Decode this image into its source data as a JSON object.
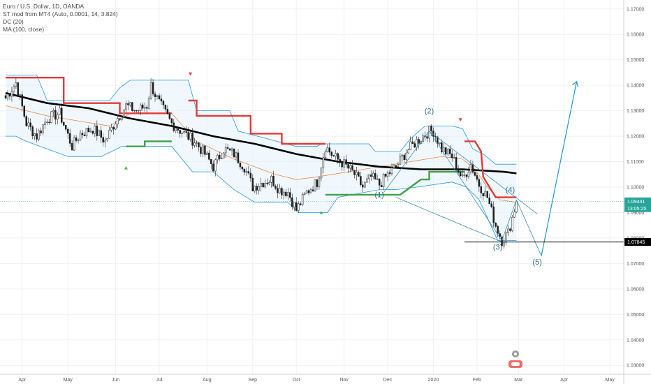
{
  "legend": {
    "title": "Euro / U.S. Dollar, 1D, OANDA",
    "indicator1": "ST mod from MT4 (Auto, 0.0001, 14, 3.824)",
    "indicator2": "DC (20)",
    "indicator3": "MA (100, close)"
  },
  "chart_data": {
    "type": "line",
    "title": "Euro / U.S. Dollar, 1D, OANDA",
    "xlabel": "",
    "ylabel": "",
    "ylim": [
      1.0265,
      1.1735
    ],
    "y_ticks": [
      "1.17000",
      "1.16000",
      "1.15000",
      "1.14000",
      "1.13000",
      "1.12000",
      "1.11000",
      "1.10000",
      "1.09000",
      "1.08000",
      "1.07000",
      "1.06000",
      "1.05000",
      "1.04000",
      "1.03000"
    ],
    "x_ticks": [
      {
        "label": "Apr",
        "index": 8
      },
      {
        "label": "May",
        "index": 30
      },
      {
        "label": "Jun",
        "index": 53
      },
      {
        "label": "Jul",
        "index": 74
      },
      {
        "label": "Aug",
        "index": 97
      },
      {
        "label": "Sep",
        "index": 119
      },
      {
        "label": "Oct",
        "index": 140
      },
      {
        "label": "Nov",
        "index": 163
      },
      {
        "label": "Dec",
        "index": 184
      },
      {
        "label": "2020",
        "index": 206
      },
      {
        "label": "Feb",
        "index": 227
      },
      {
        "label": "Mar",
        "index": 247
      },
      {
        "label": "Apr",
        "index": 269
      },
      {
        "label": "May",
        "index": 291
      }
    ],
    "price_anchors": [
      [
        0,
        1.135
      ],
      [
        5,
        1.141
      ],
      [
        10,
        1.125
      ],
      [
        15,
        1.12
      ],
      [
        20,
        1.127
      ],
      [
        26,
        1.129
      ],
      [
        32,
        1.116
      ],
      [
        36,
        1.121
      ],
      [
        42,
        1.123
      ],
      [
        48,
        1.118
      ],
      [
        53,
        1.126
      ],
      [
        58,
        1.132
      ],
      [
        63,
        1.13
      ],
      [
        68,
        1.132
      ],
      [
        70,
        1.14
      ],
      [
        74,
        1.133
      ],
      [
        80,
        1.125
      ],
      [
        86,
        1.121
      ],
      [
        91,
        1.118
      ],
      [
        96,
        1.113
      ],
      [
        100,
        1.108
      ],
      [
        105,
        1.115
      ],
      [
        110,
        1.113
      ],
      [
        115,
        1.108
      ],
      [
        119,
        1.1
      ],
      [
        124,
        1.102
      ],
      [
        128,
        1.103
      ],
      [
        132,
        1.099
      ],
      [
        136,
        1.098
      ],
      [
        140,
        1.091
      ],
      [
        145,
        1.098
      ],
      [
        150,
        1.102
      ],
      [
        154,
        1.116
      ],
      [
        158,
        1.112
      ],
      [
        163,
        1.109
      ],
      [
        168,
        1.105
      ],
      [
        172,
        1.1
      ],
      [
        176,
        1.104
      ],
      [
        180,
        1.101
      ],
      [
        184,
        1.105
      ],
      [
        188,
        1.108
      ],
      [
        193,
        1.114
      ],
      [
        198,
        1.118
      ],
      [
        204,
        1.122
      ],
      [
        206,
        1.122
      ],
      [
        210,
        1.115
      ],
      [
        215,
        1.112
      ],
      [
        220,
        1.103
      ],
      [
        224,
        1.109
      ],
      [
        228,
        1.101
      ],
      [
        232,
        1.096
      ],
      [
        236,
        1.085
      ],
      [
        239,
        1.079
      ],
      [
        242,
        1.082
      ],
      [
        244,
        1.088
      ],
      [
        246,
        1.0944
      ]
    ],
    "series": [
      {
        "name": "MA (100, close)",
        "color": "#000000",
        "points": [
          [
            0,
            1.137
          ],
          [
            20,
            1.133
          ],
          [
            40,
            1.131
          ],
          [
            60,
            1.127
          ],
          [
            80,
            1.124
          ],
          [
            100,
            1.12
          ],
          [
            120,
            1.117
          ],
          [
            140,
            1.113
          ],
          [
            160,
            1.11
          ],
          [
            180,
            1.108
          ],
          [
            200,
            1.107
          ],
          [
            220,
            1.107
          ],
          [
            240,
            1.106
          ],
          [
            246,
            1.1054
          ]
        ]
      },
      {
        "name": "ST up",
        "color": "#4caf50",
        "segments": [
          [
            [
              58,
              1.116
            ],
            [
              67,
              1.116
            ],
            [
              67,
              1.118
            ],
            [
              74,
              1.118
            ],
            [
              80,
              1.118
            ]
          ],
          [
            [
              154,
              1.097
            ],
            [
              164,
              1.097
            ],
            [
              172,
              1.097
            ],
            [
              186,
              1.097
            ],
            [
              190,
              1.097
            ],
            [
              200,
              1.103
            ],
            [
              204,
              1.103
            ],
            [
              204,
              1.106
            ],
            [
              221,
              1.106
            ]
          ]
        ]
      },
      {
        "name": "ST down",
        "color": "#e53935",
        "segments": [
          [
            [
              0,
              1.143
            ],
            [
              28,
              1.143
            ],
            [
              28,
              1.133
            ],
            [
              55,
              1.133
            ],
            [
              55,
              1.129
            ],
            [
              80,
              1.129
            ]
          ],
          [
            [
              88,
              1.134
            ],
            [
              92,
              1.134
            ],
            [
              92,
              1.128
            ],
            [
              118,
              1.128
            ],
            [
              118,
              1.121
            ],
            [
              133,
              1.121
            ],
            [
              133,
              1.117
            ],
            [
              154,
              1.117
            ]
          ],
          [
            [
              221,
              1.118
            ],
            [
              226,
              1.118
            ],
            [
              229,
              1.114
            ],
            [
              230,
              1.104
            ],
            [
              236,
              1.096
            ],
            [
              246,
              1.096
            ]
          ]
        ]
      },
      {
        "name": "DC upper",
        "color": "#2196f3",
        "points": [
          [
            0,
            1.144
          ],
          [
            15,
            1.144
          ],
          [
            20,
            1.134
          ],
          [
            50,
            1.134
          ],
          [
            55,
            1.139
          ],
          [
            60,
            1.142
          ],
          [
            88,
            1.142
          ],
          [
            92,
            1.13
          ],
          [
            108,
            1.13
          ],
          [
            112,
            1.122
          ],
          [
            140,
            1.116
          ],
          [
            150,
            1.116
          ],
          [
            152,
            1.117
          ],
          [
            175,
            1.117
          ],
          [
            178,
            1.114
          ],
          [
            190,
            1.114
          ],
          [
            195,
            1.119
          ],
          [
            202,
            1.124
          ],
          [
            215,
            1.124
          ],
          [
            220,
            1.123
          ],
          [
            225,
            1.115
          ],
          [
            230,
            1.113
          ],
          [
            236,
            1.109
          ],
          [
            246,
            1.109
          ]
        ]
      },
      {
        "name": "DC lower",
        "color": "#2196f3",
        "points": [
          [
            0,
            1.12
          ],
          [
            5,
            1.12
          ],
          [
            10,
            1.118
          ],
          [
            30,
            1.112
          ],
          [
            46,
            1.112
          ],
          [
            56,
            1.116
          ],
          [
            64,
            1.116
          ],
          [
            80,
            1.116
          ],
          [
            90,
            1.106
          ],
          [
            100,
            1.106
          ],
          [
            110,
            1.099
          ],
          [
            120,
            1.094
          ],
          [
            128,
            1.094
          ],
          [
            136,
            1.094
          ],
          [
            141,
            1.09
          ],
          [
            155,
            1.09
          ],
          [
            160,
            1.096
          ],
          [
            180,
            1.099
          ],
          [
            188,
            1.099
          ],
          [
            198,
            1.1
          ],
          [
            215,
            1.102
          ],
          [
            222,
            1.1
          ],
          [
            228,
            1.095
          ],
          [
            232,
            1.088
          ],
          [
            237,
            1.079
          ],
          [
            246,
            1.079
          ]
        ]
      },
      {
        "name": "DC mid",
        "color": "#e8772a",
        "points": [
          [
            0,
            1.132
          ],
          [
            20,
            1.128
          ],
          [
            50,
            1.124
          ],
          [
            60,
            1.129
          ],
          [
            80,
            1.129
          ],
          [
            92,
            1.118
          ],
          [
            110,
            1.111
          ],
          [
            130,
            1.105
          ],
          [
            140,
            1.103
          ],
          [
            150,
            1.104
          ],
          [
            165,
            1.106
          ],
          [
            180,
            1.108
          ],
          [
            195,
            1.11
          ],
          [
            210,
            1.112
          ],
          [
            220,
            1.111
          ],
          [
            226,
            1.107
          ],
          [
            232,
            1.1
          ],
          [
            238,
            1.095
          ],
          [
            246,
            1.094
          ]
        ]
      }
    ],
    "markers": [
      {
        "type": "triangle-up",
        "color": "#4caf50",
        "index": 58,
        "value": 1.1075
      },
      {
        "type": "triangle-up",
        "color": "#4caf50",
        "index": 152,
        "value": 1.09
      },
      {
        "type": "triangle-down",
        "color": "#e53935",
        "index": 89,
        "value": 1.1445
      },
      {
        "type": "triangle-down",
        "color": "#e53935",
        "index": 219,
        "value": 1.1265
      }
    ],
    "wave_labels": [
      {
        "label": "(1)",
        "index": 180,
        "value": 1.096
      },
      {
        "label": "(2)",
        "index": 204,
        "value": 1.129
      },
      {
        "label": "(3)",
        "index": 237,
        "value": 1.0755
      },
      {
        "label": "(4)",
        "index": 243,
        "value": 1.098
      },
      {
        "label": "(5)",
        "index": 256,
        "value": 1.0695
      }
    ],
    "price_tags": [
      {
        "label": "1.09441",
        "value": 1.09441,
        "color": "#26a69a"
      },
      {
        "label": "13:05:25",
        "value": 1.0917,
        "color": "#26a69a"
      },
      {
        "label": "1.07845",
        "value": 1.07845,
        "color": "#000000"
      }
    ]
  }
}
